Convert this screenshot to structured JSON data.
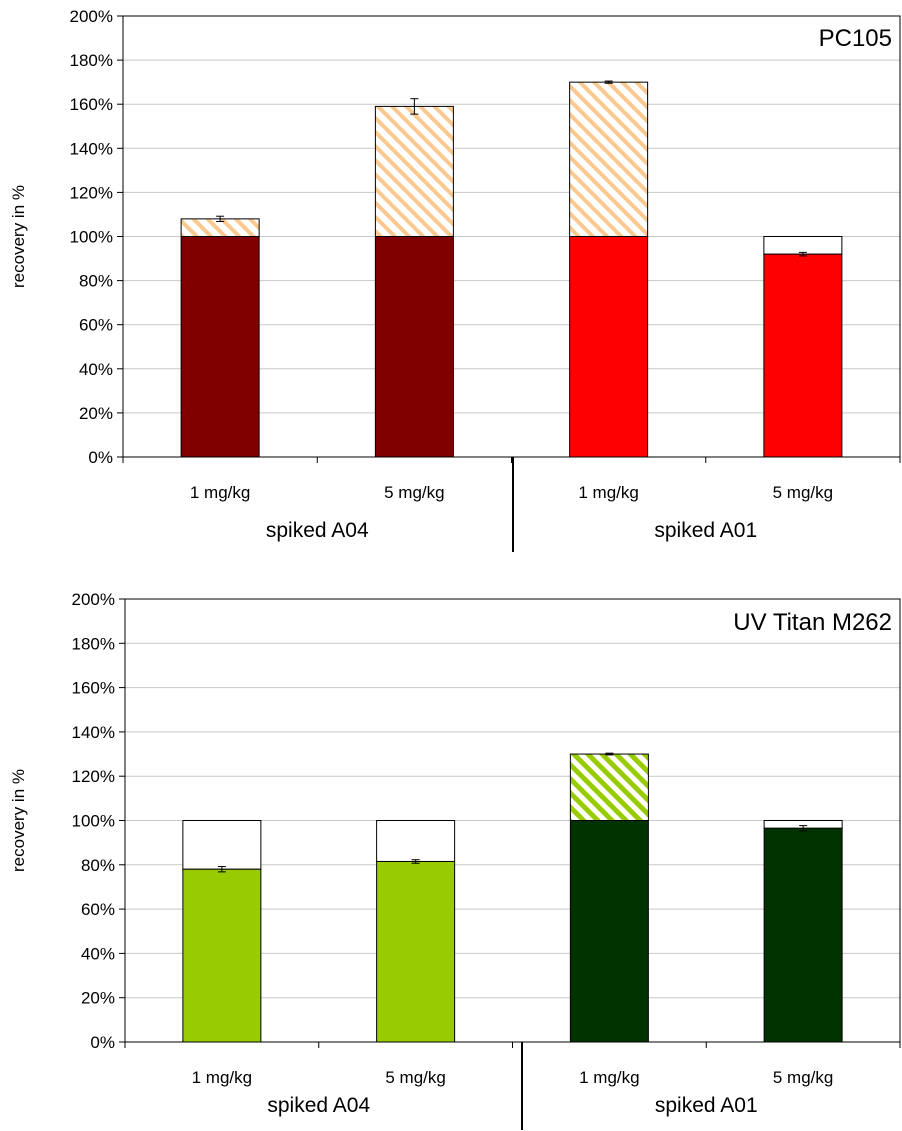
{
  "chart_data": [
    {
      "type": "bar",
      "stacked": true,
      "title": "PC105",
      "ylabel": "recovery in %",
      "ylim": [
        0,
        200
      ],
      "yticks": [
        "0%",
        "20%",
        "40%",
        "60%",
        "80%",
        "100%",
        "120%",
        "140%",
        "160%",
        "180%",
        "200%"
      ],
      "categories": [
        "1 mg/kg",
        "5 mg/kg",
        "1 mg/kg",
        "5 mg/kg"
      ],
      "groups": [
        "spiked A04",
        "spiked A01"
      ],
      "grid": true,
      "bars": [
        {
          "base": 100,
          "base_color": "#800000",
          "top": 108,
          "top_style": "hatched",
          "hatch_color": "#fbc98f",
          "error": 1.2
        },
        {
          "base": 100,
          "base_color": "#800000",
          "top": 159,
          "top_style": "hatched",
          "hatch_color": "#fbc98f",
          "error": 3.5
        },
        {
          "base": 100,
          "base_color": "#ff0000",
          "top": 170,
          "top_style": "hatched",
          "hatch_color": "#fbc98f",
          "error": 0.5
        },
        {
          "base": 92,
          "base_color": "#ff0000",
          "top": 100,
          "top_style": "white",
          "hatch_color": "",
          "error": 0.8
        }
      ]
    },
    {
      "type": "bar",
      "stacked": true,
      "title": "UV Titan M262",
      "ylabel": "recovery in %",
      "ylim": [
        0,
        200
      ],
      "yticks": [
        "0%",
        "20%",
        "40%",
        "60%",
        "80%",
        "100%",
        "120%",
        "140%",
        "160%",
        "180%",
        "200%"
      ],
      "categories": [
        "1 mg/kg",
        "5 mg/kg",
        "1 mg/kg",
        "5 mg/kg"
      ],
      "groups": [
        "spiked A04",
        "spiked A01"
      ],
      "grid": true,
      "bars": [
        {
          "base": 78,
          "base_color": "#99cc00",
          "top": 100,
          "top_style": "white",
          "hatch_color": "",
          "error": 1.2
        },
        {
          "base": 81.5,
          "base_color": "#99cc00",
          "top": 100,
          "top_style": "white",
          "hatch_color": "",
          "error": 0.8
        },
        {
          "base": 100,
          "base_color": "#003300",
          "top": 130,
          "top_style": "hatched",
          "hatch_color": "#99cc00",
          "error": 0.4
        },
        {
          "base": 96.5,
          "base_color": "#003300",
          "top": 100,
          "top_style": "white",
          "hatch_color": "",
          "error": 1.2
        }
      ]
    }
  ]
}
